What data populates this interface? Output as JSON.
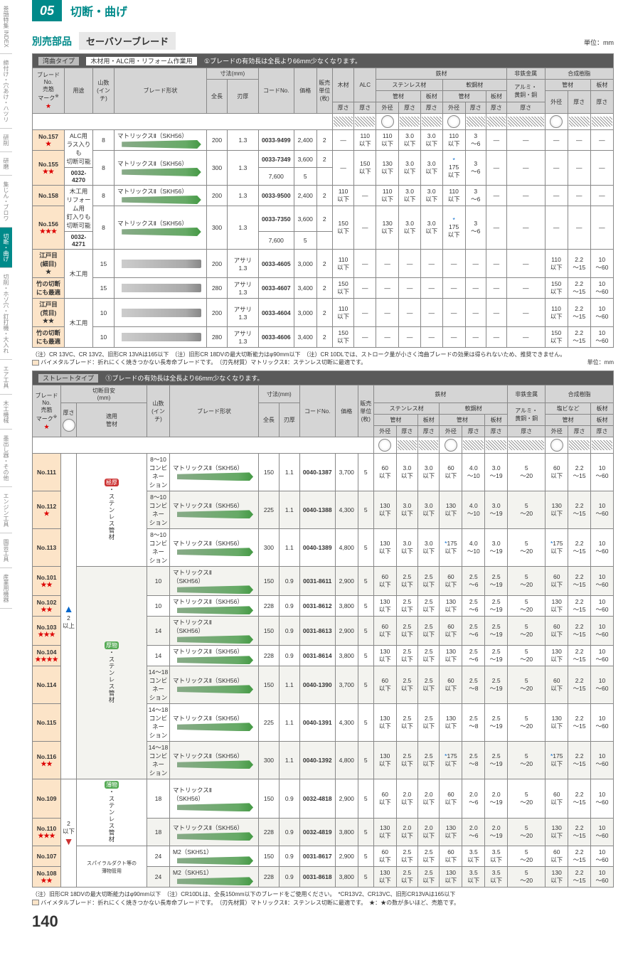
{
  "chapter": {
    "num": "05",
    "title": "切断・曲げ"
  },
  "section": {
    "main": "別売部品",
    "sub": "セーバソーブレード",
    "unit": "単位：mm"
  },
  "sidebar": [
    "巻頭特集 INDEX",
    "締付け・穴あけ・ハツリ",
    "研削",
    "研磨",
    "集じん・ブロワ",
    "切断・曲げ",
    "切削・ホゾ穴・釘打機・大入れ",
    "エア工具",
    "木工機械",
    "墨出し器・その他",
    "エンジン工具",
    "園芸工具",
    "産業用機器"
  ],
  "type1": {
    "label": "湾曲タイプ",
    "desc": "木材用・ALC用・リフォーム作業用",
    "note": "①ブレードの有効長は全長より66mm少なくなります。"
  },
  "type2": {
    "label": "ストレートタイプ",
    "note": "①ブレードの有効長は全長より66mm少なくなります。"
  },
  "headers": {
    "blade": "ブレード\nNo.\n売筋\nマーク",
    "use": "用途",
    "teeth": "山数\n(インチ)",
    "shape": "ブレード形状",
    "dim": "寸法(mm)",
    "len": "全長",
    "thick": "刃厚",
    "code": "コードNo.",
    "price": "価格",
    "qty": "販売\n単位\n(枚)",
    "wood": "木材",
    "alc": "ALC",
    "steel": "鉄材",
    "stain": "ステンレス材",
    "soft": "軟鋼材",
    "nonfe": "非鉄金属",
    "resin": "合成樹脂",
    "pipe": "管材",
    "plate": "板材",
    "alumi": "アルミ・\n黄銅・銅",
    "pvc": "塩ビなど",
    "od": "外径",
    "th": "厚さ",
    "cut": "切断目安\n(mm)",
    "mat": "適用\n管材"
  },
  "t1rows": [
    {
      "no": "No.157",
      "stars": 1,
      "use": "ALC用\nラス入りも\n切断可能",
      "teeth": "8",
      "shape": "マトリックスⅡ（SKH56）",
      "len": "200",
      "thick": "1.3",
      "code": "0033-9499",
      "price": "2,400",
      "qty": "2",
      "wood": "—",
      "alc": "110\n以下",
      "s1": "110\n以下",
      "s2": "3.0\n以下",
      "s3": "3.0\n以下",
      "s4": "110\n以下",
      "s5": "3\n〜6",
      "s6": "—",
      "s7": "—",
      "r1": "—",
      "r2": "—",
      "r3": "—"
    },
    {
      "no": "No.155",
      "stars": 2,
      "use": "",
      "teeth": "8",
      "shape": "マトリックスⅡ（SKH56）",
      "len": "300",
      "thick": "1.3",
      "codes": [
        [
          "0033-7349",
          "3,600",
          "2"
        ],
        [
          "0032-4270",
          "7,600",
          "5"
        ]
      ],
      "wood": "—",
      "alc": "150\n以下",
      "s1": "130\n以下",
      "s2": "3.0\n以下",
      "s3": "3.0\n以下",
      "s4": "*\n175\n以下",
      "s5": "3\n〜6",
      "s6": "—",
      "s7": "—",
      "r1": "—",
      "r2": "—",
      "r3": "—"
    },
    {
      "no": "No.158",
      "stars": 0,
      "use": "木工用\nリフォーム用\n釘入りも\n切断可能",
      "teeth": "8",
      "shape": "マトリックスⅡ（SKH56）",
      "len": "200",
      "thick": "1.3",
      "code": "0033-9500",
      "price": "2,400",
      "qty": "2",
      "wood": "110\n以下",
      "alc": "—",
      "s1": "110\n以下",
      "s2": "3.0\n以下",
      "s3": "3.0\n以下",
      "s4": "110\n以下",
      "s5": "3\n〜6",
      "s6": "—",
      "s7": "—",
      "r1": "—",
      "r2": "—",
      "r3": "—"
    },
    {
      "no": "No.156",
      "stars": 3,
      "use": "",
      "teeth": "8",
      "shape": "マトリックスⅡ（SKH56）",
      "len": "300",
      "thick": "1.3",
      "codes": [
        [
          "0033-7350",
          "3,600",
          "2"
        ],
        [
          "0032-4271",
          "7,600",
          "5"
        ]
      ],
      "wood": "150\n以下",
      "alc": "—",
      "s1": "130\n以下",
      "s2": "3.0\n以下",
      "s3": "3.0\n以下",
      "s4": "*\n175\n以下",
      "s5": "3\n〜6",
      "s6": "—",
      "s7": "—",
      "r1": "—",
      "r2": "—",
      "r3": "—"
    },
    {
      "no": "江戸目\n(細目)",
      "stars": 1,
      "starb": true,
      "use": "木工用",
      "teeth": "15",
      "shape": "",
      "gray": true,
      "len": "200",
      "thick": "アサリ\n1.3",
      "code": "0033-4605",
      "price": "3,000",
      "qty": "2",
      "wood": "110\n以下",
      "alc": "—",
      "s1": "—",
      "s2": "—",
      "s3": "—",
      "s4": "—",
      "s5": "—",
      "s6": "—",
      "s7": "—",
      "r1": "110\n以下",
      "r2": "2.2\n〜15",
      "r3": "10\n〜60"
    },
    {
      "no": "竹の切断にも最適",
      "stars": 0,
      "nosub": true,
      "use": "",
      "teeth": "15",
      "shape": "",
      "gray": true,
      "len": "280",
      "thick": "アサリ\n1.3",
      "code": "0033-4607",
      "price": "3,400",
      "qty": "2",
      "wood": "150\n以下",
      "alc": "—",
      "s1": "—",
      "s2": "—",
      "s3": "—",
      "s4": "—",
      "s5": "—",
      "s6": "—",
      "s7": "—",
      "r1": "150\n以下",
      "r2": "2.2\n〜15",
      "r3": "10\n〜60"
    },
    {
      "no": "江戸目\n(荒目)",
      "stars": 2,
      "starb": true,
      "use": "木工用",
      "teeth": "10",
      "shape": "",
      "gray": true,
      "len": "200",
      "thick": "アサリ\n1.3",
      "code": "0033-4604",
      "price": "3,000",
      "qty": "2",
      "wood": "110\n以下",
      "alc": "—",
      "s1": "—",
      "s2": "—",
      "s3": "—",
      "s4": "—",
      "s5": "—",
      "s6": "—",
      "s7": "—",
      "r1": "110\n以下",
      "r2": "2.2\n〜15",
      "r3": "10\n〜60"
    },
    {
      "no": "竹の切断にも最適",
      "stars": 0,
      "nosub": true,
      "use": "",
      "teeth": "10",
      "shape": "",
      "gray": true,
      "len": "280",
      "thick": "アサリ\n1.3",
      "code": "0033-4606",
      "price": "3,400",
      "qty": "2",
      "wood": "150\n以下",
      "alc": "—",
      "s1": "—",
      "s2": "—",
      "s3": "—",
      "s4": "—",
      "s5": "—",
      "s6": "—",
      "s7": "—",
      "r1": "150\n以下",
      "r2": "2.2\n〜15",
      "r3": "10\n〜60"
    }
  ],
  "t1notes": "（注）CR 13VC、CR 13V2、旧形CR 13VAは165以下　（注）旧形CR 18DVの最大切断能力はφ90mm以下　（注）CR 10DLでは、ストローク量が小さく湾曲ブレードの効果は得られないため、推奨できません。",
  "t1note2": "バイメタルブレード：折れにくく焼きつかない長寿命ブレードです。　（刃先材質）マトリックスⅡ：ステンレス切断に最適です。",
  "t2rows": [
    {
      "no": "No.111",
      "stars": 0,
      "teeth": "8〜10\nコンビネー\nション",
      "shape": "マトリックスⅡ（SKH56）",
      "len": "150",
      "thick": "1.1",
      "code": "0040-1387",
      "price": "3,700",
      "qty": "5",
      "v": [
        "60\n以下",
        "3.0\n以下",
        "3.0\n以下",
        "60\n以下",
        "4.0\n〜10",
        "3.0\n〜19",
        "5\n〜20",
        "60\n以下",
        "2.2\n〜15",
        "10\n〜60"
      ],
      "badge": "極厚",
      "mat": "・ステンレス管材"
    },
    {
      "no": "No.112",
      "stars": 1,
      "teeth": "8〜10\nコンビネー\nション",
      "shape": "マトリックスⅡ（SKH56）",
      "len": "225",
      "thick": "1.1",
      "code": "0040-1388",
      "price": "4,300",
      "qty": "5",
      "v": [
        "130\n以下",
        "3.0\n以下",
        "3.0\n以下",
        "130\n以下",
        "4.0\n〜10",
        "3.0\n〜19",
        "5\n〜20",
        "130\n以下",
        "2.2\n〜15",
        "10\n〜60"
      ],
      "alt": true
    },
    {
      "no": "No.113",
      "stars": 0,
      "teeth": "8〜10\nコンビネー\nション",
      "shape": "マトリックスⅡ（SKH56）",
      "len": "300",
      "thick": "1.1",
      "code": "0040-1389",
      "price": "4,800",
      "qty": "5",
      "v": [
        "130\n以下",
        "3.0\n以下",
        "3.0\n以下",
        "*175\n以下",
        "4.0\n〜10",
        "3.0\n〜19",
        "5\n〜20",
        "*175\n以下",
        "2.2\n〜15",
        "10\n〜60"
      ]
    },
    {
      "no": "No.101",
      "stars": 2,
      "teeth": "10",
      "shape": "マトリックスⅡ\n（SKH56）",
      "len": "150",
      "thick": "0.9",
      "code": "0031-8611",
      "price": "2,900",
      "qty": "5",
      "v": [
        "60\n以下",
        "2.5\n以下",
        "2.5\n以下",
        "60\n以下",
        "2.5\n〜6",
        "2.5\n〜19",
        "5\n〜20",
        "60\n以下",
        "2.2\n〜15",
        "10\n〜60"
      ],
      "alt": true,
      "badge": "厚物",
      "mat": "・ステンレス管材"
    },
    {
      "no": "No.102",
      "stars": 2,
      "teeth": "10",
      "shape": "マトリックスⅡ（SKH56）",
      "len": "228",
      "thick": "0.9",
      "code": "0031-8612",
      "price": "3,800",
      "qty": "5",
      "v": [
        "130\n以下",
        "2.5\n以下",
        "2.5\n以下",
        "130\n以下",
        "2.5\n〜6",
        "2.5\n〜19",
        "5\n〜20",
        "130\n以下",
        "2.2\n〜15",
        "10\n〜60"
      ]
    },
    {
      "no": "No.103",
      "stars": 3,
      "teeth": "14",
      "shape": "マトリックスⅡ\n（SKH56）",
      "len": "150",
      "thick": "0.9",
      "code": "0031-8613",
      "price": "2,900",
      "qty": "5",
      "v": [
        "60\n以下",
        "2.5\n以下",
        "2.5\n以下",
        "60\n以下",
        "2.5\n〜6",
        "2.5\n〜19",
        "5\n〜20",
        "60\n以下",
        "2.2\n〜15",
        "10\n〜60"
      ],
      "alt": true
    },
    {
      "no": "No.104",
      "stars": 4,
      "teeth": "14",
      "shape": "マトリックスⅡ（SKH56）",
      "len": "228",
      "thick": "0.9",
      "code": "0031-8614",
      "price": "3,800",
      "qty": "5",
      "v": [
        "130\n以下",
        "2.5\n以下",
        "2.5\n以下",
        "130\n以下",
        "2.5\n〜6",
        "2.5\n〜19",
        "5\n〜20",
        "130\n以下",
        "2.2\n〜15",
        "10\n〜60"
      ]
    },
    {
      "no": "No.114",
      "stars": 0,
      "teeth": "14〜18\nコンビネー\nション",
      "shape": "マトリックスⅡ（SKH56）",
      "len": "150",
      "thick": "1.1",
      "code": "0040-1390",
      "price": "3,700",
      "qty": "5",
      "v": [
        "60\n以下",
        "2.5\n以下",
        "2.5\n以下",
        "60\n以下",
        "2.5\n〜8",
        "2.5\n〜19",
        "5\n〜20",
        "60\n以下",
        "2.2\n〜15",
        "10\n〜60"
      ],
      "alt": true
    },
    {
      "no": "No.115",
      "stars": 0,
      "teeth": "14〜18\nコンビネー\nション",
      "shape": "マトリックスⅡ（SKH56）",
      "len": "225",
      "thick": "1.1",
      "code": "0040-1391",
      "price": "4,300",
      "qty": "5",
      "v": [
        "130\n以下",
        "2.5\n以下",
        "2.5\n以下",
        "130\n以下",
        "2.5\n〜8",
        "2.5\n〜19",
        "5\n〜20",
        "130\n以下",
        "2.2\n〜15",
        "10\n〜60"
      ]
    },
    {
      "no": "No.116",
      "stars": 2,
      "teeth": "14〜18\nコンビネー\nション",
      "shape": "マトリックスⅡ（SKH56）",
      "len": "300",
      "thick": "1.1",
      "code": "0040-1392",
      "price": "4,800",
      "qty": "5",
      "v": [
        "130\n以下",
        "2.5\n以下",
        "2.5\n以下",
        "*175\n以下",
        "2.5\n〜8",
        "2.5\n〜19",
        "5\n〜20",
        "*175\n以下",
        "2.2\n〜15",
        "10\n〜60"
      ],
      "alt": true
    },
    {
      "no": "No.109",
      "stars": 0,
      "teeth": "18",
      "shape": "マトリックスⅡ\n（SKH56）",
      "len": "150",
      "thick": "0.9",
      "code": "0032-4818",
      "price": "2,900",
      "qty": "5",
      "v": [
        "60\n以下",
        "2.0\n以下",
        "2.0\n以下",
        "60\n以下",
        "2.0\n〜6",
        "2.0\n〜19",
        "5\n〜20",
        "60\n以下",
        "2.2\n〜15",
        "10\n〜60"
      ],
      "badge": "薄物",
      "mat": "・ステンレス管材"
    },
    {
      "no": "No.110",
      "stars": 3,
      "teeth": "18",
      "shape": "マトリックスⅡ（SKH56）",
      "len": "228",
      "thick": "0.9",
      "code": "0032-4819",
      "price": "3,800",
      "qty": "5",
      "v": [
        "130\n以下",
        "2.0\n以下",
        "2.0\n以下",
        "130\n以下",
        "2.0\n〜6",
        "2.0\n〜19",
        "5\n〜20",
        "130\n以下",
        "2.2\n〜15",
        "10\n〜60"
      ],
      "alt": true
    },
    {
      "no": "No.107",
      "stars": 0,
      "teeth": "24",
      "shape": "M2（SKH51）",
      "len": "150",
      "thick": "0.9",
      "code": "0031-8617",
      "price": "2,900",
      "qty": "5",
      "v": [
        "60\n以下",
        "2.5\n以下",
        "2.5\n以下",
        "60\n以下",
        "3.5\n以下",
        "3.5\n以下",
        "5\n〜20",
        "60\n以下",
        "2.2\n〜15",
        "10\n〜60"
      ],
      "mat": "スパイラルダクト等の\n薄物管用"
    },
    {
      "no": "No.108",
      "stars": 2,
      "teeth": "24",
      "shape": "M2（SKH51）",
      "len": "228",
      "thick": "0.9",
      "code": "0031-8618",
      "price": "3,800",
      "qty": "5",
      "v": [
        "130\n以下",
        "2.5\n以下",
        "2.5\n以下",
        "130\n以下",
        "3.5\n以下",
        "3.5\n以下",
        "5\n〜20",
        "130\n以下",
        "2.2\n〜15",
        "10\n〜60"
      ],
      "alt": true
    }
  ],
  "cut_hint": {
    "up": "2\n以上",
    "dn": "2\n以下"
  },
  "t2notes": "（注）旧形CR 18DVの最大切断能力はφ90mm以下　（注）CR10DLは、全長150mm以下のブレードをご使用ください。　*CR13V2、CR13VC、旧形CR13VAは165以下",
  "t2note2": "バイメタルブレード：折れにくく焼きつかない長寿命ブレードです。　（刃先材質）マトリックスⅡ：ステンレス切断に最適です。　★：★の数が多いほど、売筋です。",
  "pagenum": "140"
}
